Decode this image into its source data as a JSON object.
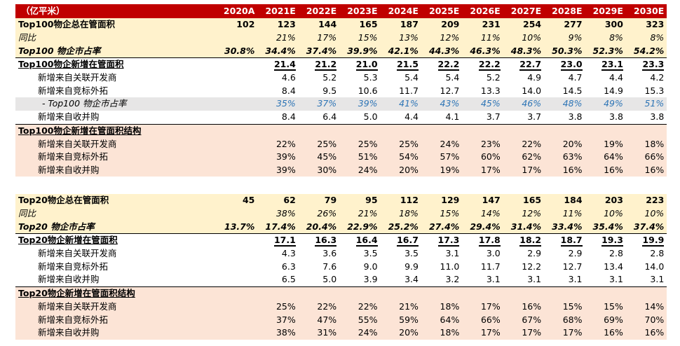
{
  "header": {
    "unit": "（亿平米）",
    "years": [
      "2020A",
      "2021E",
      "2022E",
      "2023E",
      "2024E",
      "2025E",
      "2026E",
      "2027E",
      "2028E",
      "2029E",
      "2030E"
    ]
  },
  "top100": {
    "total": {
      "label": "Top100物企总在管面积",
      "values": [
        "102",
        "123",
        "144",
        "165",
        "187",
        "209",
        "231",
        "254",
        "277",
        "300",
        "323"
      ]
    },
    "yoy": {
      "label": "同比",
      "values": [
        "",
        "21%",
        "17%",
        "15%",
        "13%",
        "12%",
        "11%",
        "10%",
        "9%",
        "8%",
        "8%"
      ]
    },
    "share": {
      "label": "Top100 物企市占率",
      "values": [
        "30.8%",
        "34.4%",
        "37.4%",
        "39.9%",
        "42.1%",
        "44.3%",
        "46.3%",
        "48.3%",
        "50.3%",
        "52.3%",
        "54.2%"
      ]
    },
    "new_total": {
      "label": "Top100物企新增在管面积",
      "values": [
        "",
        "21.4",
        "21.2",
        "21.0",
        "21.5",
        "22.2",
        "22.2",
        "22.7",
        "23.0",
        "23.1",
        "23.3"
      ]
    },
    "new_dev": {
      "label": "新增来自关联开发商",
      "values": [
        "",
        "4.6",
        "5.2",
        "5.3",
        "5.4",
        "5.4",
        "5.2",
        "4.9",
        "4.7",
        "4.4",
        "4.2"
      ]
    },
    "new_ext": {
      "label": "新增来自竞标外拓",
      "values": [
        "",
        "8.4",
        "9.5",
        "10.6",
        "11.7",
        "12.7",
        "13.3",
        "14.0",
        "14.5",
        "14.9",
        "15.3"
      ]
    },
    "new_share": {
      "label": "- Top100 物企市占率",
      "values": [
        "",
        "35%",
        "37%",
        "39%",
        "41%",
        "43%",
        "45%",
        "46%",
        "48%",
        "49%",
        "51%"
      ]
    },
    "new_ma": {
      "label": "新增来自收并购",
      "values": [
        "",
        "8.4",
        "6.4",
        "5.0",
        "4.4",
        "4.1",
        "3.7",
        "3.7",
        "3.8",
        "3.8",
        "3.8"
      ]
    },
    "structure": {
      "label": "Top100物企新增在管面积结构"
    },
    "str_dev": {
      "label": "新增来自关联开发商",
      "values": [
        "",
        "22%",
        "25%",
        "25%",
        "25%",
        "24%",
        "23%",
        "22%",
        "20%",
        "19%",
        "18%"
      ]
    },
    "str_ext": {
      "label": "新增来自竞标外拓",
      "values": [
        "",
        "39%",
        "45%",
        "51%",
        "54%",
        "57%",
        "60%",
        "62%",
        "63%",
        "64%",
        "66%"
      ]
    },
    "str_ma": {
      "label": "新增来自收并购",
      "values": [
        "",
        "39%",
        "30%",
        "24%",
        "20%",
        "19%",
        "17%",
        "17%",
        "16%",
        "16%",
        "16%"
      ]
    }
  },
  "top20": {
    "total": {
      "label": "Top20物企总在管面积",
      "values": [
        "45",
        "62",
        "79",
        "95",
        "112",
        "129",
        "147",
        "165",
        "184",
        "203",
        "223"
      ]
    },
    "yoy": {
      "label": "同比",
      "values": [
        "",
        "38%",
        "26%",
        "21%",
        "18%",
        "15%",
        "14%",
        "12%",
        "11%",
        "10%",
        "10%"
      ]
    },
    "share": {
      "label": "Top20 物企市占率",
      "values": [
        "13.7%",
        "17.4%",
        "20.4%",
        "22.9%",
        "25.2%",
        "27.4%",
        "29.4%",
        "31.4%",
        "33.4%",
        "35.4%",
        "37.4%"
      ]
    },
    "new_total": {
      "label": "Top20物企新增在管面积",
      "values": [
        "",
        "17.1",
        "16.3",
        "16.4",
        "16.7",
        "17.3",
        "17.8",
        "18.2",
        "18.7",
        "19.3",
        "19.9"
      ]
    },
    "new_dev": {
      "label": "新增来自关联开发商",
      "values": [
        "",
        "4.3",
        "3.6",
        "3.5",
        "3.5",
        "3.1",
        "3.0",
        "2.9",
        "2.9",
        "2.8",
        "2.8"
      ]
    },
    "new_ext": {
      "label": "新增来自竞标外拓",
      "values": [
        "",
        "6.3",
        "7.6",
        "9.0",
        "9.9",
        "11.0",
        "11.7",
        "12.2",
        "12.7",
        "13.4",
        "14.0"
      ]
    },
    "new_ma": {
      "label": "新增来自收并购",
      "values": [
        "",
        "6.5",
        "5.0",
        "3.9",
        "3.4",
        "3.2",
        "3.1",
        "3.1",
        "3.1",
        "3.1",
        "3.1"
      ]
    },
    "structure": {
      "label": "Top20物企新增在管面积结构"
    },
    "str_dev": {
      "label": "新增来自关联开发商",
      "values": [
        "",
        "25%",
        "22%",
        "22%",
        "21%",
        "18%",
        "17%",
        "16%",
        "15%",
        "15%",
        "14%"
      ]
    },
    "str_ext": {
      "label": "新增来自竞标外拓",
      "values": [
        "",
        "37%",
        "47%",
        "55%",
        "59%",
        "64%",
        "66%",
        "67%",
        "68%",
        "69%",
        "70%"
      ]
    },
    "str_ma": {
      "label": "新增来自收并购",
      "values": [
        "",
        "38%",
        "31%",
        "24%",
        "20%",
        "18%",
        "17%",
        "17%",
        "17%",
        "16%",
        "16%"
      ]
    }
  },
  "colors": {
    "header_bg": "#c00000",
    "yellow_bg": "#fff2cc",
    "pink_bg": "#fce4d6",
    "grey_bg": "#e7e6e6",
    "blue_text": "#2e75b6"
  }
}
